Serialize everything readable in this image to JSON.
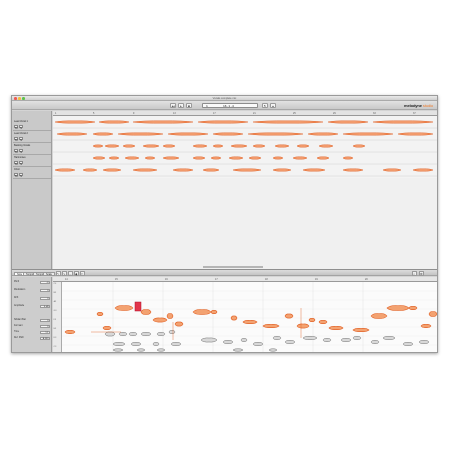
{
  "window": {
    "title": "Vocals complete mix"
  },
  "toolbar": {
    "position_display": "16.1.4",
    "position_secondary": "1",
    "brand_main": "melodyne",
    "brand_suffix": "studio"
  },
  "tracks": [
    {
      "name": "Lead Vocal 1",
      "mute": "M",
      "solo": "S"
    },
    {
      "name": "Lead Vocal 2",
      "mute": "M",
      "solo": "S"
    },
    {
      "name": "Backing Vocals",
      "mute": "M",
      "solo": "S"
    },
    {
      "name": "Harmonies",
      "mute": "M",
      "solo": "S"
    },
    {
      "name": "Choir",
      "mute": "M",
      "solo": "S"
    }
  ],
  "ruler_top": [
    "1",
    "5",
    "9",
    "13",
    "17",
    "21",
    "25",
    "29",
    "33",
    "37"
  ],
  "editor_tabs": [
    {
      "label": "Note"
    },
    {
      "label": "Tempo"
    },
    {
      "label": "Tempo"
    },
    {
      "label": "Scale"
    }
  ],
  "ruler_editor": [
    "14",
    "15",
    "16",
    "17",
    "18",
    "19",
    "20"
  ],
  "keys": [
    "C4",
    "B3",
    "A3",
    "G3",
    "F3",
    "E3",
    "D3",
    "C3"
  ],
  "inspector": {
    "rows": [
      {
        "label": "Pitch",
        "value": "-0"
      },
      {
        "label": "Modulation",
        "value": "0"
      },
      {
        "label": "Drift",
        "value": "0"
      },
      {
        "label": "Amplitude",
        "value": "0 dB"
      },
      {
        "label": "Sibilant Bal.",
        "value": "0"
      },
      {
        "label": "Formant",
        "value": "0"
      },
      {
        "label": "Time",
        "value": "1.1"
      },
      {
        "label": "Ref. Pitch",
        "value": "A 440"
      }
    ]
  },
  "colors": {
    "note_fill": "#f3a271",
    "note_stroke": "#e05a1c",
    "selected": "#e2364b",
    "blob_gray": "#7a7a7a"
  }
}
